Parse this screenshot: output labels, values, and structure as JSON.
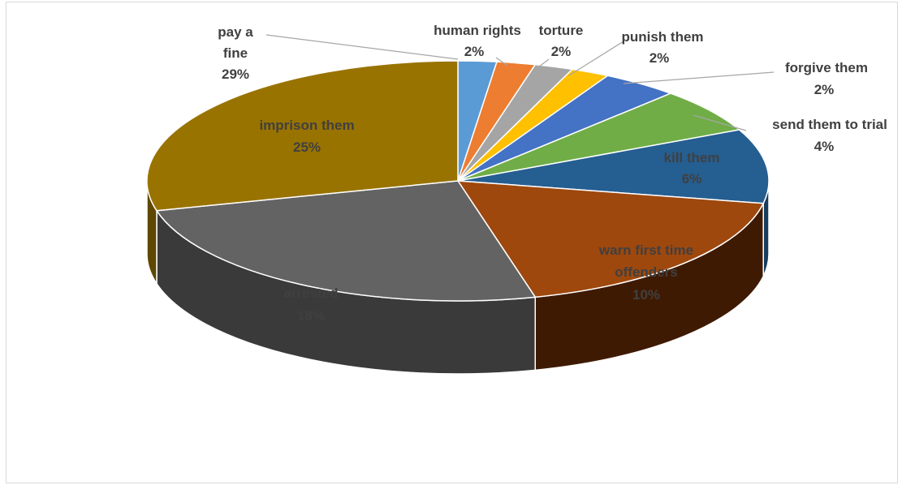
{
  "chart_data": {
    "type": "pie",
    "style": "3d-exploded-none",
    "slices": [
      {
        "label": "human rights",
        "value": 2,
        "value_label": "2%",
        "color": "#5b9bd5",
        "side_color": "#3d6e9a",
        "label_pos": "outside"
      },
      {
        "label": "torture",
        "value": 2,
        "value_label": "2%",
        "color": "#ed7d31",
        "side_color": "#a8571f",
        "label_pos": "outside"
      },
      {
        "label": "punish them",
        "value": 2,
        "value_label": "2%",
        "color": "#a5a5a5",
        "side_color": "#6f6f6f",
        "label_pos": "outside"
      },
      {
        "label": "forgive them",
        "value": 2,
        "value_label": "2%",
        "color": "#ffc000",
        "side_color": "#b58700",
        "label_pos": "outside"
      },
      {
        "label": "send them to trial",
        "value": 4,
        "value_label": "4%",
        "color": "#4472c4",
        "side_color": "#2c4f8c",
        "label_pos": "outside"
      },
      {
        "label": "kill them",
        "value": 6,
        "value_label": "6%",
        "color": "#70ad47",
        "side_color": "#4d7a30",
        "label_pos": "outside"
      },
      {
        "label": "warn first time offenders",
        "value": 10,
        "value_label": "10%",
        "color": "#255e91",
        "side_color": "#173d5e",
        "label_pos": "inside"
      },
      {
        "label": "arrested",
        "value": 18,
        "value_label": "18%",
        "color": "#9e480e",
        "side_color": "#3f1a02",
        "label_pos": "inside"
      },
      {
        "label": "imprison them",
        "value": 25,
        "value_label": "25%",
        "color": "#636363",
        "side_color": "#3a3a3a",
        "label_pos": "inside"
      },
      {
        "label": "pay a fine",
        "value": 29,
        "value_label": "29%",
        "color": "#997300",
        "side_color": "#5e4700",
        "label_pos": "inside"
      }
    ],
    "legend": "none",
    "title": ""
  }
}
